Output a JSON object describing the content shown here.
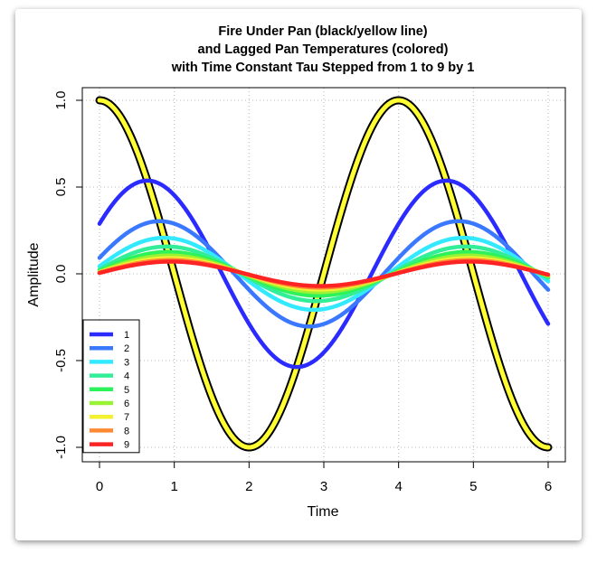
{
  "chart_data": {
    "type": "line",
    "title": [
      "Fire Under Pan (black/yellow line)",
      "and Lagged Pan Temperatures (colored)",
      "with Time Constant Tau Stepped from 1 to 9 by 1"
    ],
    "xlabel": "Time",
    "ylabel": "Amplitude",
    "xlim": [
      0,
      6
    ],
    "ylim": [
      -1.0,
      1.0
    ],
    "xticks": [
      "0",
      "1",
      "2",
      "3",
      "4",
      "5",
      "6"
    ],
    "yticks": [
      "-1.0",
      "-0.5",
      "0.0",
      "0.5",
      "1.0"
    ],
    "grid": true,
    "legend_position": "bottom-left",
    "fire": {
      "function": "cos(pi*t/2)",
      "outline_color": "#000000",
      "fill_color": "#ffff33"
    },
    "series": [
      {
        "name": "1",
        "tau": 1,
        "color": "#2b2bff"
      },
      {
        "name": "2",
        "tau": 2,
        "color": "#3a78ff"
      },
      {
        "name": "3",
        "tau": 3,
        "color": "#33e9ff"
      },
      {
        "name": "4",
        "tau": 4,
        "color": "#33ee99"
      },
      {
        "name": "5",
        "tau": 5,
        "color": "#2ef25a"
      },
      {
        "name": "6",
        "tau": 6,
        "color": "#99f233"
      },
      {
        "name": "7",
        "tau": 7,
        "color": "#f2f233"
      },
      {
        "name": "8",
        "tau": 8,
        "color": "#ff8a33"
      },
      {
        "name": "9",
        "tau": 9,
        "color": "#ff2424"
      }
    ]
  }
}
